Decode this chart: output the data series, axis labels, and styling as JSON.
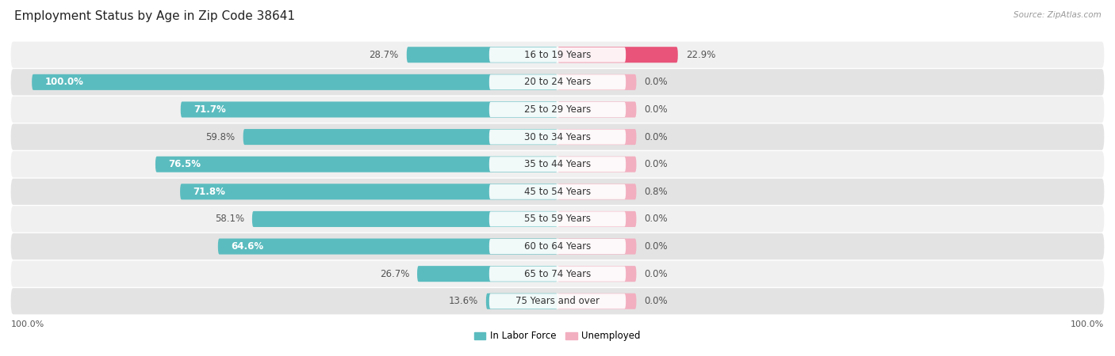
{
  "title": "Employment Status by Age in Zip Code 38641",
  "source": "Source: ZipAtlas.com",
  "age_groups": [
    "16 to 19 Years",
    "20 to 24 Years",
    "25 to 29 Years",
    "30 to 34 Years",
    "35 to 44 Years",
    "45 to 54 Years",
    "55 to 59 Years",
    "60 to 64 Years",
    "65 to 74 Years",
    "75 Years and over"
  ],
  "labor_force": [
    28.7,
    100.0,
    71.7,
    59.8,
    76.5,
    71.8,
    58.1,
    64.6,
    26.7,
    13.6
  ],
  "unemployed": [
    22.9,
    0.0,
    0.0,
    0.0,
    0.0,
    0.8,
    0.0,
    0.0,
    0.0,
    0.0
  ],
  "labor_force_color": "#5bbcbf",
  "unemployed_color_high": "#e8547a",
  "unemployed_color_low": "#f2afc0",
  "row_bg_color_light": "#f0f0f0",
  "row_bg_color_dark": "#e3e3e3",
  "title_fontsize": 11,
  "label_fontsize": 8.5,
  "max_value": 100.0,
  "min_pink_bar": 15.0,
  "legend_labor_force": "In Labor Force",
  "legend_unemployed": "Unemployed"
}
